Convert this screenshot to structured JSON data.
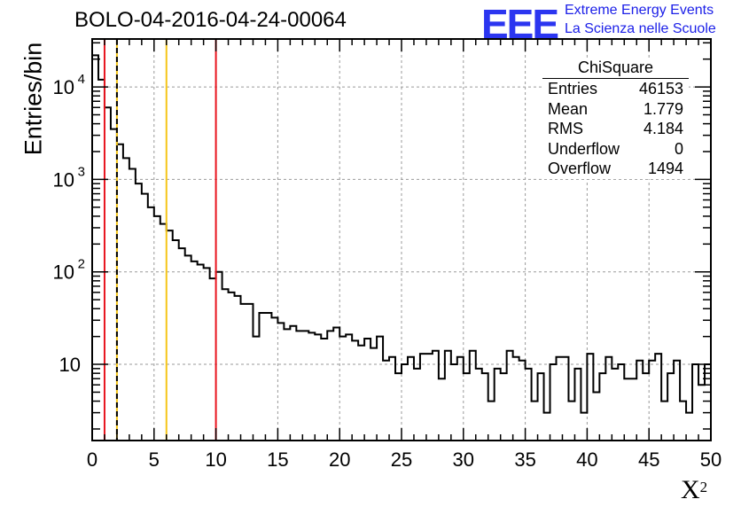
{
  "header": {
    "title": "BOLO-04-2016-04-24-00064",
    "logo_text": "EEE",
    "logo_line1": "Extreme Energy Events",
    "logo_line2": "La Scienza nelle Scuole"
  },
  "stats": {
    "title": "ChiSquare",
    "rows": [
      {
        "label": "Entries",
        "value": "46153"
      },
      {
        "label": "Mean",
        "value": "1.779"
      },
      {
        "label": "RMS",
        "value": "4.184"
      },
      {
        "label": "Underflow",
        "value": "0"
      },
      {
        "label": "Overflow",
        "value": "1494"
      }
    ]
  },
  "colors": {
    "red": "#e8141e",
    "yellow": "#f5c518",
    "logo_blue": "#2b35f0"
  },
  "chart_data": {
    "type": "histogram",
    "title": "BOLO-04-2016-04-24-00064",
    "xlabel": "X",
    "xlabel_sup": "2",
    "ylabel": "Entries/bin",
    "yscale": "log",
    "xlim": [
      0,
      50
    ],
    "ylim": [
      1.5,
      33000
    ],
    "grid": true,
    "x_ticks": [
      "0",
      "5",
      "10",
      "15",
      "20",
      "25",
      "30",
      "35",
      "40",
      "45",
      "50"
    ],
    "y_ticks": [
      {
        "base": "10",
        "exp": "4",
        "value": 10000
      },
      {
        "base": "10",
        "exp": "3",
        "value": 1000
      },
      {
        "base": "10",
        "exp": "2",
        "value": 100
      },
      {
        "base": "10",
        "exp": "",
        "value": 10
      }
    ],
    "bin_width": 0.5,
    "values": [
      22000,
      12000,
      6000,
      3500,
      2400,
      1700,
      1300,
      900,
      700,
      500,
      400,
      330,
      280,
      220,
      180,
      150,
      130,
      120,
      110,
      85,
      100,
      65,
      60,
      55,
      45,
      45,
      20,
      36,
      36,
      32,
      28,
      24,
      26,
      23,
      23,
      22,
      21,
      19,
      23,
      25,
      20,
      21,
      18,
      16,
      19,
      15,
      20,
      11,
      12,
      8,
      10,
      12,
      9,
      13,
      13,
      14,
      7,
      14,
      10,
      12,
      8,
      14,
      9,
      8,
      4,
      9,
      8,
      14,
      12,
      11,
      9,
      4,
      8,
      3,
      10,
      12,
      12,
      4,
      9,
      3,
      13,
      5,
      8,
      12,
      9,
      10,
      7,
      7,
      11,
      8,
      11,
      13,
      4,
      8,
      11,
      4,
      3,
      10,
      6,
      10
    ],
    "vlines": [
      {
        "x": 1,
        "color": "red",
        "style": "solid"
      },
      {
        "x": 2,
        "color": "yellow",
        "style": "solid"
      },
      {
        "x": 2,
        "color": "black",
        "style": "dashed"
      },
      {
        "x": 6,
        "color": "yellow",
        "style": "solid"
      },
      {
        "x": 10,
        "color": "red",
        "style": "solid"
      }
    ]
  }
}
